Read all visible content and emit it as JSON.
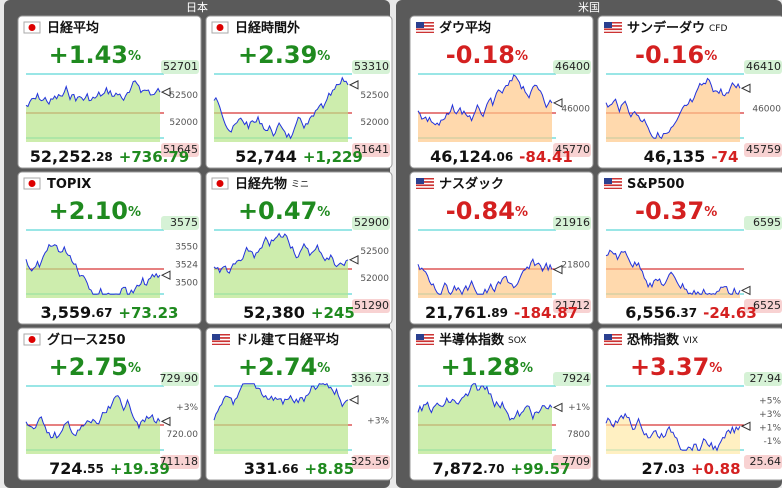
{
  "groups": [
    {
      "title": "日本",
      "tiles": [
        {
          "flag": "jp",
          "name": "日経平均",
          "pct": "+1.43",
          "unit": "%",
          "color": "#1f8a1f",
          "fill": "#b8e68a",
          "high": "52701",
          "ticks": [
            "52500",
            "52000"
          ],
          "low": "51645",
          "price_main": "52,252",
          "price_frac": ".28",
          "change": "+736.79"
        },
        {
          "flag": "jp",
          "name": "日経時間外",
          "pct": "+2.39",
          "unit": "%",
          "color": "#1f8a1f",
          "fill": "#b8e68a",
          "high": "53310",
          "ticks": [
            "52500",
            "52000"
          ],
          "low": "51641",
          "price_main": "52,744",
          "price_frac": "",
          "change": "+1,229"
        },
        {
          "flag": "jp",
          "name": "TOPIX",
          "pct": "+2.10",
          "unit": "%",
          "color": "#1f8a1f",
          "fill": "#b8e68a",
          "high": "3575",
          "ticks": [
            "3550",
            "3524",
            "3500"
          ],
          "low": "",
          "price_main": "3,559",
          "price_frac": ".67",
          "change": "+73.23"
        },
        {
          "flag": "jp",
          "name": "日経先物",
          "suffix": "ミニ",
          "pct": "+0.47",
          "unit": "%",
          "color": "#1f8a1f",
          "fill": "#b8e68a",
          "high": "52900",
          "ticks": [
            "52500",
            "52000"
          ],
          "low": "51290",
          "price_main": "52,380",
          "price_frac": "",
          "change": "+245"
        },
        {
          "flag": "jp",
          "name": "グロース250",
          "pct": "+2.75",
          "unit": "%",
          "color": "#1f8a1f",
          "fill": "#b8e68a",
          "high": "729.90",
          "ticks": [
            "+3%",
            "720.00"
          ],
          "low": "711.18",
          "price_main": "724",
          "price_frac": ".55",
          "change": "+19.39"
        },
        {
          "flag": "us",
          "name": "ドル建て日経平均",
          "pct": "+2.74",
          "unit": "%",
          "color": "#1f8a1f",
          "fill": "#b8e68a",
          "high": "336.73",
          "ticks": [
            "+3%"
          ],
          "low": "325.56",
          "price_main": "331",
          "price_frac": ".66",
          "change": "+8.85"
        }
      ]
    },
    {
      "title": "米国",
      "tiles": [
        {
          "flag": "us",
          "name": "ダウ平均",
          "pct": "-0.18",
          "unit": "%",
          "color": "#d42020",
          "fill": "#ffc98a",
          "high": "46400",
          "ticks": [
            "46000"
          ],
          "low": "45770",
          "price_main": "46,124",
          "price_frac": ".06",
          "change": "-84.41"
        },
        {
          "flag": "us",
          "name": "サンデーダウ",
          "suffix": "CFD",
          "pct": "-0.16",
          "unit": "%",
          "color": "#d42020",
          "fill": "#ffc98a",
          "high": "46410",
          "ticks": [
            "46000"
          ],
          "low": "45759",
          "price_main": "46,135",
          "price_frac": "",
          "change": "-74"
        },
        {
          "flag": "us",
          "name": "ナスダック",
          "pct": "-0.84",
          "unit": "%",
          "color": "#d42020",
          "fill": "#ffc98a",
          "high": "21916",
          "ticks": [
            "21800"
          ],
          "low": "21712",
          "price_main": "21,761",
          "price_frac": ".89",
          "change": "-184.87"
        },
        {
          "flag": "us",
          "name": "S&P500",
          "pct": "-0.37",
          "unit": "%",
          "color": "#d42020",
          "fill": "#ffc98a",
          "high": "6595",
          "ticks": [],
          "low": "6525",
          "price_main": "6,556",
          "price_frac": ".37",
          "change": "-24.63"
        },
        {
          "flag": "us",
          "name": "半導体指数",
          "suffix": "SOX",
          "pct": "+1.28",
          "unit": "%",
          "color": "#1f8a1f",
          "fill": "#b8e68a",
          "high": "7924",
          "ticks": [
            "+1%",
            "7800"
          ],
          "low": "7709",
          "price_main": "7,872",
          "price_frac": ".70",
          "change": "+99.57"
        },
        {
          "flag": "us",
          "name": "恐怖指数",
          "suffix": "VIX",
          "pct": "+3.37",
          "unit": "%",
          "color": "#d42020",
          "fill": "#ffe9a8",
          "high": "27.94",
          "ticks": [
            "+5%",
            "+3%",
            "+1%",
            "-1%"
          ],
          "low": "25.64",
          "price_main": "27",
          "price_frac": ".03",
          "change": "+0.88"
        }
      ]
    }
  ]
}
